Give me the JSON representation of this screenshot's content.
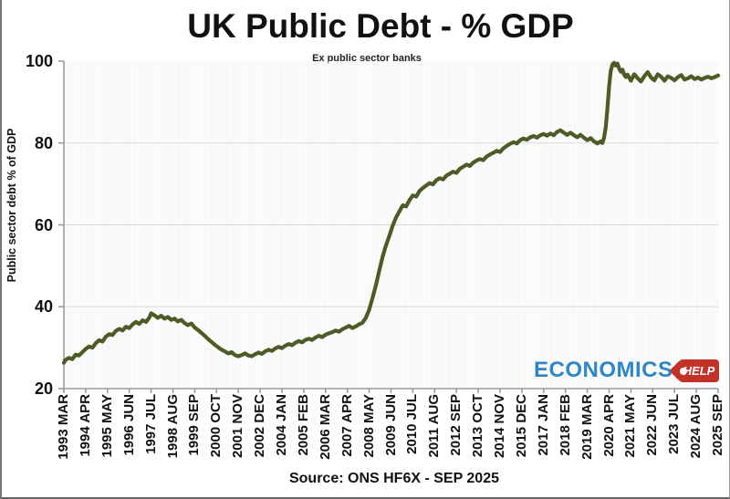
{
  "chart_data": {
    "type": "line",
    "title": "UK Public Debt - % GDP",
    "subtitle": "Ex public sector banks",
    "ylabel": "Public sector debt % of GDP",
    "source": "Source: ONS HF6X - SEP 2025",
    "ylim": [
      20,
      100
    ],
    "yticks": [
      20,
      40,
      60,
      80,
      100
    ],
    "gridlines_y": [
      40,
      60,
      80
    ],
    "grid": "horizontal-light-plus-faint-monthly-vertical",
    "legend_position": "none",
    "months_total": 390,
    "x_tick_month_step": 13,
    "x_tick_labels": [
      "1993 MAR",
      "1994 APR",
      "1995 MAY",
      "1996 JUN",
      "1997 JUL",
      "1998 AUG",
      "1999 SEP",
      "2000 OCT",
      "2001 NOV",
      "2002 DEC",
      "2004 JAN",
      "2005 FEB",
      "2006 MAR",
      "2007 APR",
      "2008 MAY",
      "2009 JUN",
      "2010 JUL",
      "2011 AUG",
      "2012 SEP",
      "2013 OCT",
      "2014 NOV",
      "2015 DEC",
      "2017 JAN",
      "2018 FEB",
      "2019 MAR",
      "2020 APR",
      "2021 MAY",
      "2022 JUN",
      "2023 JUL",
      "2024 AUG",
      "2025 SEP"
    ],
    "axis_color": "#9b9b9b",
    "gridline_color": "#d9d9d9",
    "minor_grid_color": "#f3f3f3",
    "series": [
      {
        "name": "UK public sector debt % of GDP (ex public sector banks)",
        "color": "#4d5b26",
        "points": [
          [
            0,
            26.3
          ],
          [
            1,
            27.0
          ],
          [
            3,
            27.5
          ],
          [
            5,
            27.2
          ],
          [
            7,
            28.3
          ],
          [
            9,
            28.1
          ],
          [
            11,
            28.9
          ],
          [
            13,
            29.7
          ],
          [
            15,
            30.3
          ],
          [
            17,
            30.0
          ],
          [
            19,
            31.1
          ],
          [
            21,
            31.8
          ],
          [
            23,
            31.5
          ],
          [
            25,
            32.7
          ],
          [
            27,
            33.3
          ],
          [
            29,
            33.1
          ],
          [
            31,
            34.1
          ],
          [
            33,
            34.6
          ],
          [
            35,
            34.2
          ],
          [
            37,
            35.1
          ],
          [
            39,
            34.8
          ],
          [
            41,
            35.7
          ],
          [
            43,
            36.3
          ],
          [
            45,
            35.8
          ],
          [
            47,
            36.7
          ],
          [
            49,
            36.3
          ],
          [
            51,
            37.4
          ],
          [
            52,
            38.4
          ],
          [
            54,
            37.9
          ],
          [
            56,
            37.3
          ],
          [
            58,
            37.8
          ],
          [
            60,
            37.1
          ],
          [
            62,
            37.5
          ],
          [
            64,
            36.8
          ],
          [
            66,
            37.1
          ],
          [
            68,
            36.4
          ],
          [
            70,
            36.8
          ],
          [
            72,
            36.0
          ],
          [
            74,
            35.5
          ],
          [
            76,
            35.9
          ],
          [
            78,
            34.9
          ],
          [
            80,
            34.3
          ],
          [
            82,
            33.6
          ],
          [
            84,
            32.9
          ],
          [
            86,
            32.1
          ],
          [
            88,
            31.4
          ],
          [
            90,
            30.7
          ],
          [
            92,
            30.1
          ],
          [
            94,
            29.5
          ],
          [
            96,
            29.1
          ],
          [
            98,
            28.6
          ],
          [
            100,
            28.9
          ],
          [
            102,
            28.2
          ],
          [
            104,
            27.9
          ],
          [
            106,
            28.2
          ],
          [
            108,
            28.6
          ],
          [
            110,
            28.1
          ],
          [
            112,
            27.9
          ],
          [
            114,
            28.4
          ],
          [
            116,
            28.8
          ],
          [
            118,
            28.5
          ],
          [
            120,
            29.1
          ],
          [
            122,
            29.5
          ],
          [
            124,
            29.2
          ],
          [
            126,
            29.8
          ],
          [
            128,
            30.2
          ],
          [
            130,
            29.9
          ],
          [
            132,
            30.5
          ],
          [
            134,
            30.9
          ],
          [
            136,
            30.6
          ],
          [
            138,
            31.2
          ],
          [
            140,
            31.6
          ],
          [
            142,
            31.3
          ],
          [
            144,
            31.9
          ],
          [
            146,
            32.2
          ],
          [
            148,
            31.9
          ],
          [
            150,
            32.5
          ],
          [
            152,
            32.9
          ],
          [
            154,
            32.6
          ],
          [
            156,
            33.2
          ],
          [
            158,
            33.5
          ],
          [
            160,
            33.8
          ],
          [
            162,
            34.2
          ],
          [
            164,
            33.9
          ],
          [
            166,
            34.5
          ],
          [
            168,
            34.9
          ],
          [
            170,
            35.3
          ],
          [
            172,
            34.8
          ],
          [
            174,
            35.2
          ],
          [
            176,
            35.7
          ],
          [
            178,
            36.1
          ],
          [
            180,
            37.3
          ],
          [
            182,
            39.3
          ],
          [
            184,
            42.2
          ],
          [
            186,
            45.3
          ],
          [
            188,
            48.8
          ],
          [
            190,
            52.2
          ],
          [
            192,
            55.0
          ],
          [
            194,
            57.3
          ],
          [
            196,
            59.8
          ],
          [
            198,
            61.8
          ],
          [
            200,
            63.3
          ],
          [
            202,
            64.8
          ],
          [
            204,
            64.5
          ],
          [
            206,
            66.0
          ],
          [
            208,
            67.2
          ],
          [
            210,
            66.9
          ],
          [
            212,
            68.3
          ],
          [
            214,
            69.0
          ],
          [
            216,
            69.6
          ],
          [
            218,
            70.2
          ],
          [
            220,
            69.9
          ],
          [
            222,
            70.9
          ],
          [
            224,
            71.4
          ],
          [
            226,
            71.1
          ],
          [
            228,
            72.0
          ],
          [
            230,
            72.5
          ],
          [
            232,
            73.0
          ],
          [
            234,
            72.7
          ],
          [
            236,
            73.7
          ],
          [
            238,
            74.2
          ],
          [
            240,
            74.7
          ],
          [
            242,
            74.4
          ],
          [
            244,
            75.2
          ],
          [
            246,
            75.7
          ],
          [
            248,
            76.1
          ],
          [
            250,
            75.8
          ],
          [
            252,
            76.7
          ],
          [
            254,
            77.2
          ],
          [
            256,
            77.6
          ],
          [
            258,
            78.1
          ],
          [
            260,
            77.8
          ],
          [
            262,
            78.7
          ],
          [
            264,
            79.3
          ],
          [
            266,
            79.8
          ],
          [
            268,
            80.2
          ],
          [
            270,
            79.9
          ],
          [
            272,
            80.7
          ],
          [
            274,
            81.1
          ],
          [
            276,
            80.8
          ],
          [
            278,
            81.4
          ],
          [
            280,
            81.7
          ],
          [
            282,
            81.3
          ],
          [
            284,
            81.9
          ],
          [
            286,
            82.2
          ],
          [
            288,
            81.8
          ],
          [
            290,
            82.3
          ],
          [
            292,
            81.9
          ],
          [
            294,
            82.7
          ],
          [
            296,
            83.1
          ],
          [
            298,
            82.5
          ],
          [
            300,
            82.0
          ],
          [
            302,
            82.5
          ],
          [
            304,
            81.9
          ],
          [
            306,
            81.4
          ],
          [
            308,
            82.0
          ],
          [
            310,
            81.3
          ],
          [
            312,
            80.7
          ],
          [
            314,
            81.2
          ],
          [
            316,
            80.4
          ],
          [
            318,
            79.9
          ],
          [
            320,
            80.4
          ],
          [
            321,
            80.0
          ],
          [
            322,
            81.3
          ],
          [
            323,
            83.8
          ],
          [
            324,
            88.5
          ],
          [
            325,
            93.8
          ],
          [
            326,
            97.6
          ],
          [
            327,
            99.2
          ],
          [
            328,
            99.6
          ],
          [
            329,
            98.9
          ],
          [
            330,
            99.4
          ],
          [
            331,
            98.2
          ],
          [
            332,
            97.4
          ],
          [
            333,
            97.9
          ],
          [
            334,
            96.7
          ],
          [
            335,
            96.1
          ],
          [
            336,
            96.7
          ],
          [
            338,
            95.2
          ],
          [
            340,
            96.8
          ],
          [
            342,
            95.8
          ],
          [
            344,
            95.0
          ],
          [
            346,
            96.3
          ],
          [
            348,
            97.3
          ],
          [
            350,
            96.0
          ],
          [
            352,
            95.3
          ],
          [
            354,
            96.8
          ],
          [
            356,
            96.2
          ],
          [
            358,
            95.2
          ],
          [
            360,
            96.3
          ],
          [
            362,
            95.9
          ],
          [
            364,
            95.3
          ],
          [
            366,
            96.1
          ],
          [
            368,
            96.6
          ],
          [
            370,
            95.5
          ],
          [
            372,
            95.8
          ],
          [
            374,
            96.3
          ],
          [
            376,
            95.6
          ],
          [
            378,
            96.0
          ],
          [
            380,
            95.5
          ],
          [
            382,
            95.9
          ],
          [
            384,
            96.2
          ],
          [
            386,
            95.8
          ],
          [
            388,
            96.1
          ],
          [
            390,
            96.5
          ]
        ]
      }
    ]
  },
  "branding": {
    "brand_text": "ECONOMICS",
    "brand_tag": "HELP",
    "brand_color": "#2e86c8",
    "tag_color": "#c23229"
  }
}
